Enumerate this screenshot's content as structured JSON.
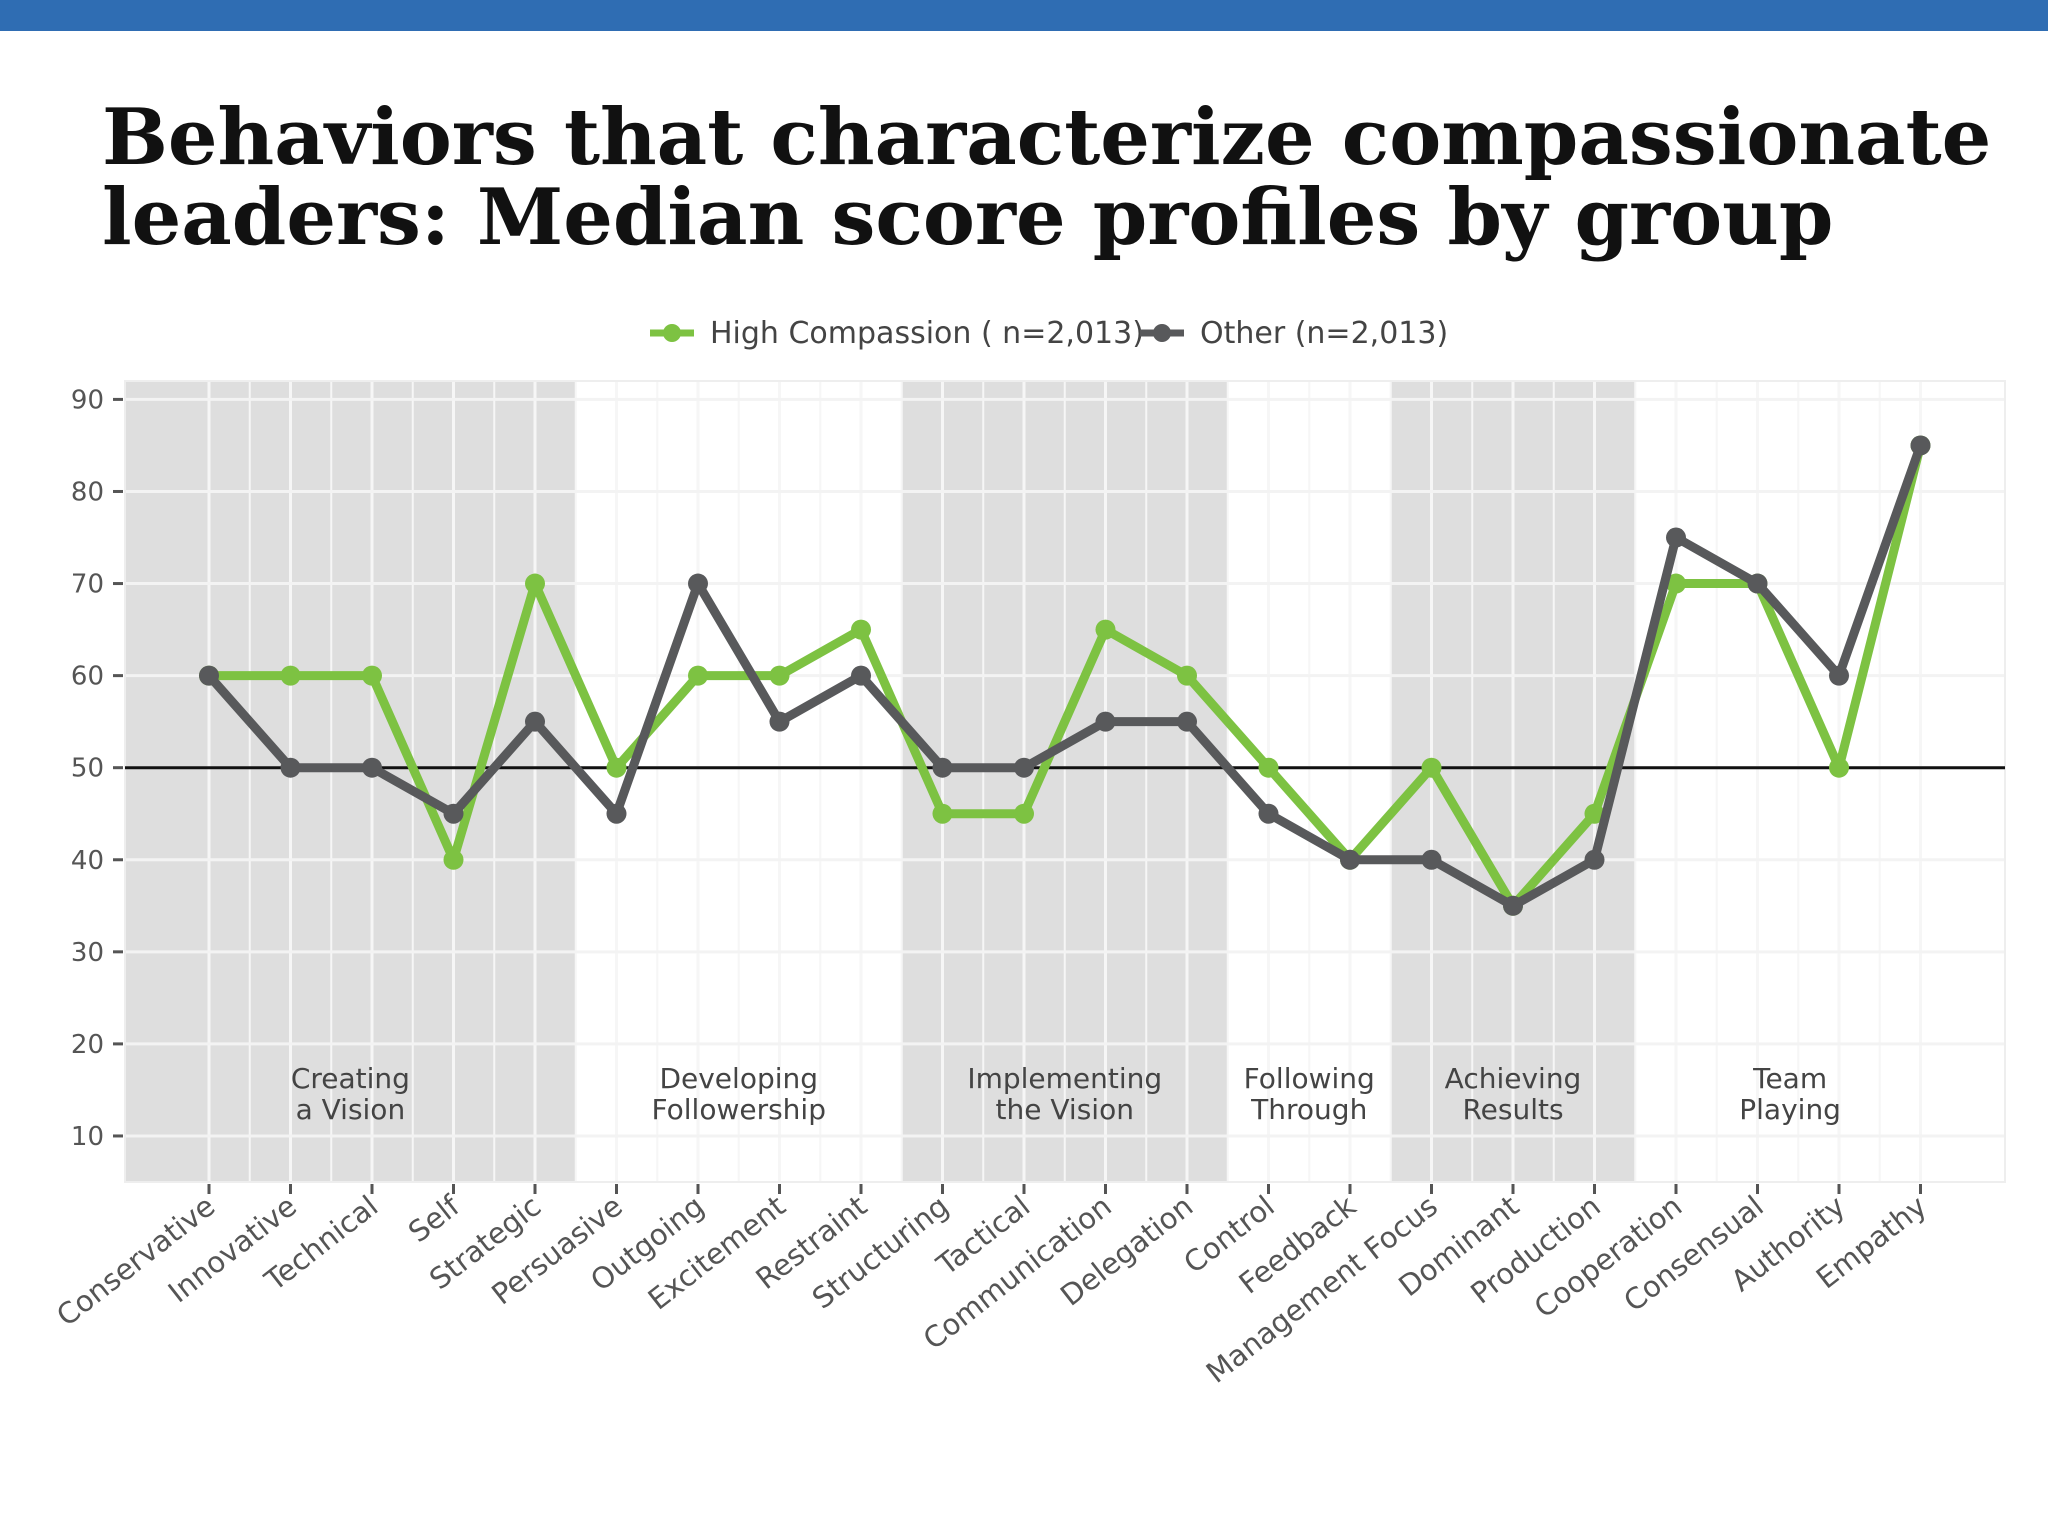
{
  "title_lines": [
    "Behaviors that characterize compassionate",
    "leaders: Median score profiles by group"
  ],
  "colors": {
    "top_bar": "#2f6db3",
    "high_compassion": "#7dc242",
    "other": "#58595b",
    "band": "#dedede",
    "reference_line": "#111111"
  },
  "chart_data": {
    "type": "line",
    "title": "",
    "xlabel": "",
    "ylabel": "",
    "ylim": [
      5,
      92
    ],
    "yticks": [
      10,
      20,
      30,
      40,
      50,
      60,
      70,
      80,
      90
    ],
    "grid": true,
    "legend_position": "top-center",
    "reference_line": 50,
    "categories": [
      "Conservative",
      "Innovative",
      "Technical",
      "Self",
      "Strategic",
      "Persuasive",
      "Outgoing",
      "Excitement",
      "Restraint",
      "Structuring",
      "Tactical",
      "Communication",
      "Delegation",
      "Control",
      "Feedback",
      "Management Focus",
      "Dominant",
      "Production",
      "Cooperation",
      "Consensual",
      "Authority",
      "Empathy"
    ],
    "series": [
      {
        "name": "High Compassion ( n=2,013)",
        "color": "#7dc242",
        "values": [
          60,
          60,
          60,
          40,
          70,
          50,
          60,
          60,
          65,
          45,
          45,
          65,
          60,
          50,
          40,
          50,
          35,
          45,
          70,
          70,
          50,
          85
        ]
      },
      {
        "name": "Other (n=2,013)",
        "color": "#58595b",
        "values": [
          60,
          50,
          50,
          45,
          55,
          45,
          70,
          55,
          60,
          50,
          50,
          55,
          55,
          45,
          40,
          40,
          35,
          40,
          75,
          70,
          60,
          85
        ]
      }
    ],
    "groups": [
      {
        "lines": [
          "Creating",
          "a Vision"
        ],
        "start": 0,
        "end": 4,
        "shaded": true
      },
      {
        "lines": [
          "Developing",
          "Followership"
        ],
        "start": 5,
        "end": 8,
        "shaded": false
      },
      {
        "lines": [
          "Implementing",
          "the Vision"
        ],
        "start": 9,
        "end": 12,
        "shaded": true
      },
      {
        "lines": [
          "Following",
          "Through"
        ],
        "start": 13,
        "end": 14,
        "shaded": false
      },
      {
        "lines": [
          "Achieving",
          "Results"
        ],
        "start": 15,
        "end": 17,
        "shaded": true
      },
      {
        "lines": [
          "Team",
          "Playing"
        ],
        "start": 18,
        "end": 21,
        "shaded": false
      }
    ]
  }
}
